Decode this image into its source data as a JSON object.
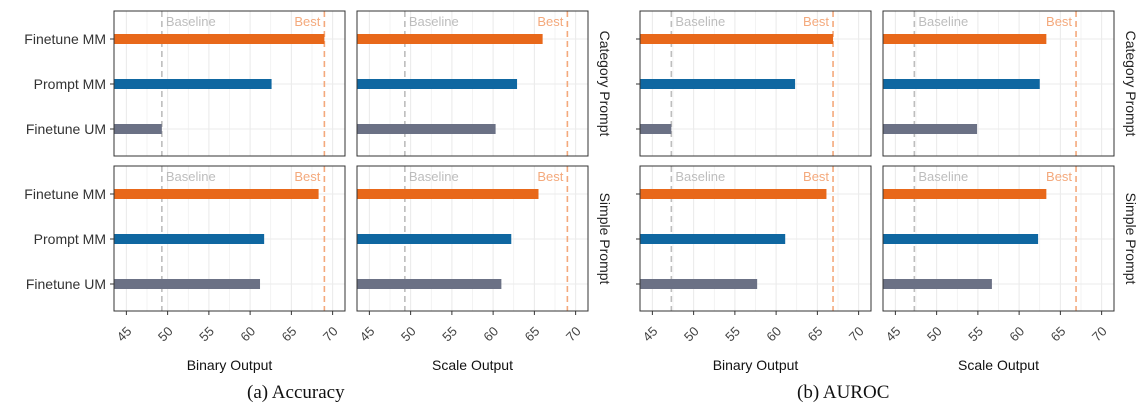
{
  "colors": {
    "finetune_mm": "#e8681a",
    "prompt_mm": "#0f67a1",
    "finetune_um": "#6b7185",
    "baseline_line": "#bdbdbd",
    "best_line": "#f4a97c",
    "grid": "#ebebeb",
    "panel_border": "#333333"
  },
  "captions": {
    "left": "(a)  Accuracy",
    "right": "(b)  AUROC"
  },
  "chart_data": [
    {
      "type": "bar",
      "orientation": "horizontal",
      "caption": "(a)  Accuracy",
      "categories": [
        "Finetune MM",
        "Prompt MM",
        "Finetune UM"
      ],
      "xlim": [
        43.5,
        71.5
      ],
      "x_ticks": [
        45,
        50,
        55,
        60,
        65,
        70
      ],
      "grid": true,
      "columns": [
        "Binary Output",
        "Scale Output"
      ],
      "rows": [
        "Category Prompt",
        "Simple Prompt"
      ],
      "reference_lines": [
        {
          "label": "Baseline",
          "value": 49.3
        },
        {
          "label": "Best",
          "value": 69.0
        }
      ],
      "panels": [
        {
          "row": "Category Prompt",
          "column": "Binary Output",
          "values": [
            69.0,
            62.6,
            49.3
          ]
        },
        {
          "row": "Category Prompt",
          "column": "Scale Output",
          "values": [
            66.0,
            62.9,
            60.3
          ]
        },
        {
          "row": "Simple Prompt",
          "column": "Binary Output",
          "values": [
            68.3,
            61.7,
            61.2
          ]
        },
        {
          "row": "Simple Prompt",
          "column": "Scale Output",
          "values": [
            65.5,
            62.2,
            61.0
          ]
        }
      ]
    },
    {
      "type": "bar",
      "orientation": "horizontal",
      "caption": "(b)  AUROC",
      "categories": [
        "Finetune MM",
        "Prompt MM",
        "Finetune UM"
      ],
      "xlim": [
        43.5,
        71.5
      ],
      "x_ticks": [
        45,
        50,
        55,
        60,
        65,
        70
      ],
      "grid": true,
      "columns": [
        "Binary Output",
        "Scale Output"
      ],
      "rows": [
        "Category Prompt",
        "Simple Prompt"
      ],
      "reference_lines": [
        {
          "label": "Baseline",
          "value": 47.3
        },
        {
          "label": "Best",
          "value": 66.9
        }
      ],
      "panels": [
        {
          "row": "Category Prompt",
          "column": "Binary Output",
          "values": [
            66.9,
            62.3,
            47.3
          ]
        },
        {
          "row": "Category Prompt",
          "column": "Scale Output",
          "values": [
            63.3,
            62.5,
            54.9
          ]
        },
        {
          "row": "Simple Prompt",
          "column": "Binary Output",
          "values": [
            66.1,
            61.1,
            57.7
          ]
        },
        {
          "row": "Simple Prompt",
          "column": "Scale Output",
          "values": [
            63.3,
            62.3,
            56.7
          ]
        }
      ]
    }
  ]
}
